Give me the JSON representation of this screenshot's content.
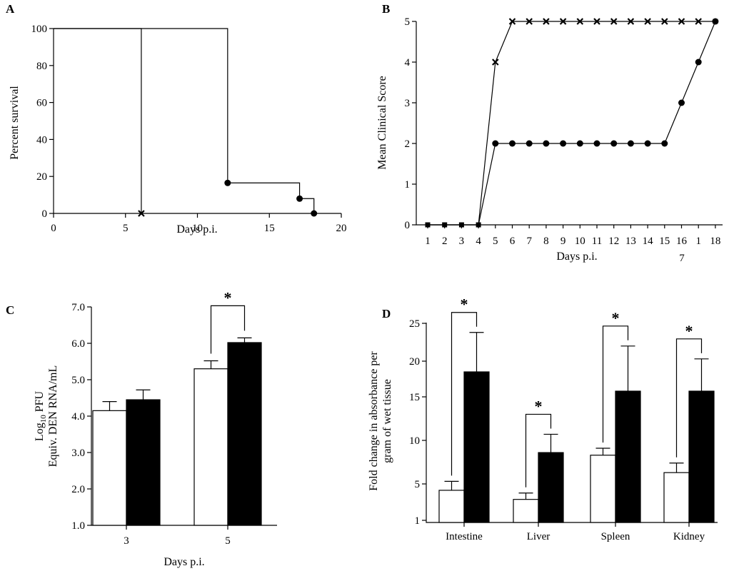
{
  "chart_data": [
    {
      "panel": "A",
      "type": "line",
      "xlabel": "Days p.i.",
      "ylabel": "Percent survival",
      "xlim": [
        0,
        20
      ],
      "ylim": [
        0,
        100
      ],
      "xticks": [
        "0",
        "5",
        "10",
        "15",
        "20"
      ],
      "yticks": [
        "0",
        "20",
        "40",
        "60",
        "80",
        "100"
      ],
      "series": [
        {
          "marker": "x",
          "x": [
            0,
            6.1,
            6.1
          ],
          "y": [
            100,
            100,
            0
          ],
          "censored": [
            {
              "x": 6.1,
              "y": 0
            }
          ]
        },
        {
          "marker": "circle",
          "x": [
            0,
            12.1,
            12.1,
            17.1,
            17.1,
            18.1,
            18.1
          ],
          "y": [
            100,
            100,
            16.5,
            16.5,
            8,
            8,
            0
          ],
          "censored": [
            {
              "x": 12.1,
              "y": 16.5
            },
            {
              "x": 17.1,
              "y": 8
            },
            {
              "x": 18.1,
              "y": 0
            }
          ]
        }
      ]
    },
    {
      "panel": "B",
      "type": "line",
      "xlabel": "Days p.i.",
      "ylabel": "Mean Clinical Score",
      "ylim": [
        0,
        5
      ],
      "categories": [
        "1",
        "2",
        "3",
        "4",
        "5",
        "6",
        "7",
        "8",
        "9",
        "10",
        "11",
        "12",
        "13",
        "14",
        "15",
        "16",
        "1",
        "18"
      ],
      "extra_tick_label": "7",
      "yticks": [
        "0",
        "1",
        "2",
        "3",
        "4",
        "5"
      ],
      "series": [
        {
          "marker": "x",
          "values": [
            0,
            0,
            0,
            0,
            4,
            5,
            5,
            5,
            5,
            5,
            5,
            5,
            5,
            5,
            5,
            5,
            5,
            5
          ]
        },
        {
          "marker": "circle",
          "values": [
            0,
            0,
            0,
            0,
            2,
            2,
            2,
            2,
            2,
            2,
            2,
            2,
            2,
            2,
            2,
            3,
            4,
            5
          ]
        }
      ]
    },
    {
      "panel": "C",
      "type": "bar",
      "xlabel": "Days p.i.",
      "ylabel_line1": "Log",
      "ylabel_sub": "10",
      "ylabel_line1_rest": " PFU",
      "ylabel_line2": "Equiv. DEN RNA/mL",
      "ylim": [
        1,
        7
      ],
      "yticks": [
        "1.0",
        "2.0",
        "3.0",
        "4.0",
        "5.0",
        "6.0",
        "7.0"
      ],
      "categories": [
        "3",
        "5"
      ],
      "series": [
        {
          "fill": "#ffffff",
          "values": [
            4.15,
            5.3
          ],
          "errors": [
            0.25,
            0.22
          ]
        },
        {
          "fill": "#000000",
          "values": [
            4.45,
            6.02
          ],
          "errors": [
            0.27,
            0.13
          ]
        }
      ],
      "significance": [
        {
          "category": 1,
          "label": "*"
        }
      ]
    },
    {
      "panel": "D",
      "type": "bar",
      "ylabel_line1": "Fold change in absorbance per",
      "ylabel_line2": "gram of wet tissue",
      "ylim": [
        1,
        25
      ],
      "ytick_values": [
        1,
        5,
        10,
        15,
        20,
        25
      ],
      "yticks": [
        "1",
        "5",
        "10",
        "15",
        "20",
        "25"
      ],
      "categories": [
        "Intestine",
        "Liver",
        "Spleen",
        "Kidney"
      ],
      "series": [
        {
          "fill": "#ffffff",
          "values": [
            4.3,
            3.3,
            8.3,
            6.3
          ],
          "errors": [
            1.0,
            0.7,
            0.8,
            1.1
          ]
        },
        {
          "fill": "#000000",
          "values": [
            18.5,
            8.6,
            15.8,
            15.8
          ],
          "errors": [
            5.3,
            2.1,
            6.2,
            4.5
          ]
        }
      ],
      "significance": [
        {
          "category": 0,
          "label": "*"
        },
        {
          "category": 1,
          "label": "*"
        },
        {
          "category": 2,
          "label": "*"
        },
        {
          "category": 3,
          "label": "*"
        }
      ]
    }
  ]
}
